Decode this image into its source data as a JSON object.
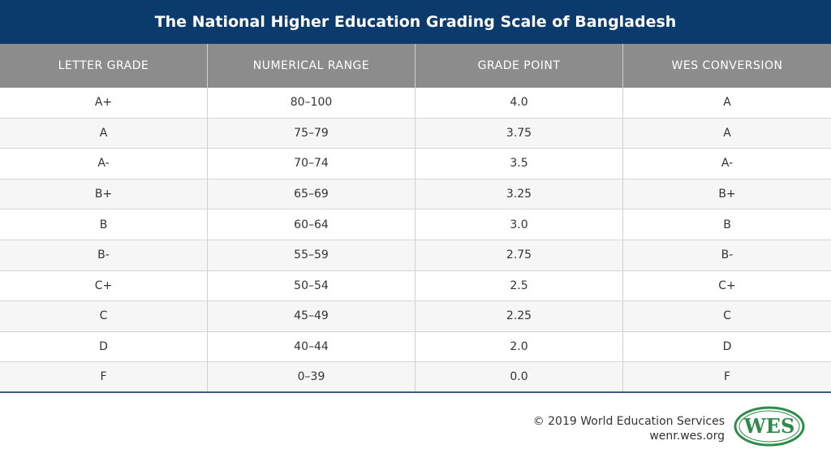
{
  "header": {
    "title": "The National Higher Education Grading Scale of Bangladesh"
  },
  "table": {
    "headers": [
      "LETTER GRADE",
      "NUMERICAL RANGE",
      "GRADE POINT",
      "WES CONVERSION"
    ],
    "rows": [
      [
        "A+",
        "80–100",
        "4.0",
        "A"
      ],
      [
        "A",
        "75–79",
        "3.75",
        "A"
      ],
      [
        "A-",
        "70–74",
        "3.5",
        "A-"
      ],
      [
        "B+",
        "65–69",
        "3.25",
        "B+"
      ],
      [
        "B",
        "60–64",
        "3.0",
        "B"
      ],
      [
        "B-",
        "55–59",
        "2.75",
        "B-"
      ],
      [
        "C+",
        "50–54",
        "2.5",
        "C+"
      ],
      [
        "C",
        "45–49",
        "2.25",
        "C"
      ],
      [
        "D",
        "40–44",
        "2.0",
        "D"
      ],
      [
        "F",
        "0–39",
        "0.0",
        "F"
      ]
    ]
  },
  "footer": {
    "copyright": "© 2019 World Education Services",
    "url": "wenr.wes.org",
    "logo": "WES"
  }
}
